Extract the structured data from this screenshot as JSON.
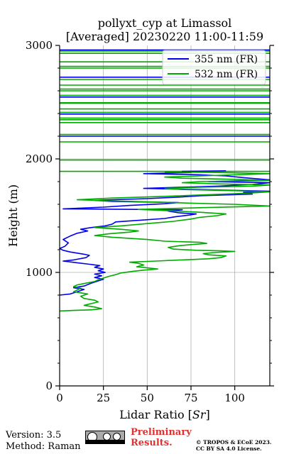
{
  "chart_data": {
    "type": "line",
    "title": "pollyxt_cyp at Limassol",
    "subtitle": "[Averaged] 20230220 11:00-11:59",
    "xlabel": "Lidar Ratio [Sr]",
    "ylabel": "Height (m)",
    "xlim": [
      0,
      120
    ],
    "ylim": [
      0,
      3000
    ],
    "x_ticks": [
      0,
      25,
      50,
      75,
      100
    ],
    "y_ticks": [
      0,
      1000,
      2000,
      3000
    ],
    "grid": true,
    "legend_position": "top-right",
    "series": [
      {
        "name": "355 nm (FR)",
        "color": "#0000ee",
        "points": [
          [
            0,
            800
          ],
          [
            6,
            810
          ],
          [
            10,
            830
          ],
          [
            14,
            850
          ],
          [
            8,
            865
          ],
          [
            14,
            880
          ],
          [
            18,
            905
          ],
          [
            22,
            925
          ],
          [
            25,
            940
          ],
          [
            20,
            955
          ],
          [
            24,
            970
          ],
          [
            20,
            985
          ],
          [
            26,
            1000
          ],
          [
            22,
            1015
          ],
          [
            25,
            1030
          ],
          [
            20,
            1045
          ],
          [
            23,
            1060
          ],
          [
            18,
            1070
          ],
          [
            10,
            1085
          ],
          [
            2,
            1100
          ],
          [
            8,
            1110
          ],
          [
            15,
            1130
          ],
          [
            17,
            1150
          ],
          [
            14,
            1160
          ],
          [
            10,
            1170
          ],
          [
            6,
            1180
          ],
          [
            2,
            1195
          ],
          [
            0,
            1210
          ],
          [
            3,
            1230
          ],
          [
            5,
            1260
          ],
          [
            2,
            1290
          ],
          [
            6,
            1320
          ],
          [
            10,
            1345
          ],
          [
            16,
            1365
          ],
          [
            12,
            1380
          ],
          [
            18,
            1395
          ],
          [
            26,
            1410
          ],
          [
            30,
            1425
          ],
          [
            32,
            1445
          ],
          [
            46,
            1460
          ],
          [
            60,
            1475
          ],
          [
            66,
            1490
          ],
          [
            74,
            1505
          ],
          [
            78,
            1515
          ],
          [
            68,
            1525
          ],
          [
            62,
            1540
          ],
          [
            70,
            1552
          ],
          [
            2,
            1560
          ],
          [
            25,
            1575
          ],
          [
            40,
            1590
          ],
          [
            60,
            1605
          ],
          [
            68,
            1615
          ],
          [
            30,
            1625
          ],
          [
            20,
            1635
          ],
          [
            50,
            1650
          ],
          [
            70,
            1665
          ],
          [
            80,
            1675
          ],
          [
            110,
            1690
          ],
          [
            105,
            1705
          ],
          [
            120,
            1715
          ],
          [
            80,
            1730
          ],
          [
            48,
            1740
          ],
          [
            90,
            1760
          ],
          [
            110,
            1775
          ],
          [
            120,
            1790
          ],
          [
            85,
            1800
          ],
          [
            120,
            1815
          ],
          [
            105,
            1835
          ],
          [
            95,
            1850
          ],
          [
            80,
            1860
          ],
          [
            48,
            1870
          ],
          [
            75,
            1880
          ],
          [
            70,
            1890
          ],
          [
            95,
            1895
          ]
        ]
      },
      {
        "name": "532 nm (FR)",
        "color": "#00aa00",
        "points": [
          [
            0,
            660
          ],
          [
            8,
            665
          ],
          [
            18,
            670
          ],
          [
            24,
            680
          ],
          [
            20,
            695
          ],
          [
            14,
            710
          ],
          [
            18,
            725
          ],
          [
            22,
            740
          ],
          [
            20,
            755
          ],
          [
            14,
            770
          ],
          [
            12,
            790
          ],
          [
            16,
            810
          ],
          [
            8,
            830
          ],
          [
            10,
            845
          ],
          [
            12,
            860
          ],
          [
            8,
            875
          ],
          [
            10,
            890
          ],
          [
            15,
            905
          ],
          [
            20,
            920
          ],
          [
            22,
            935
          ],
          [
            25,
            950
          ],
          [
            28,
            965
          ],
          [
            32,
            980
          ],
          [
            35,
            995
          ],
          [
            42,
            1010
          ],
          [
            48,
            1020
          ],
          [
            56,
            1030
          ],
          [
            50,
            1040
          ],
          [
            44,
            1050
          ],
          [
            48,
            1065
          ],
          [
            45,
            1080
          ],
          [
            40,
            1090
          ],
          [
            55,
            1100
          ],
          [
            70,
            1110
          ],
          [
            85,
            1120
          ],
          [
            92,
            1130
          ],
          [
            95,
            1145
          ],
          [
            85,
            1155
          ],
          [
            82,
            1165
          ],
          [
            88,
            1175
          ],
          [
            100,
            1185
          ],
          [
            92,
            1190
          ],
          [
            78,
            1195
          ],
          [
            65,
            1205
          ],
          [
            62,
            1220
          ],
          [
            68,
            1235
          ],
          [
            75,
            1245
          ],
          [
            84,
            1255
          ],
          [
            80,
            1265
          ],
          [
            60,
            1275
          ],
          [
            50,
            1290
          ],
          [
            30,
            1310
          ],
          [
            20,
            1325
          ],
          [
            28,
            1340
          ],
          [
            40,
            1355
          ],
          [
            45,
            1365
          ],
          [
            35,
            1380
          ],
          [
            20,
            1395
          ],
          [
            35,
            1410
          ],
          [
            50,
            1430
          ],
          [
            65,
            1450
          ],
          [
            75,
            1470
          ],
          [
            80,
            1485
          ],
          [
            90,
            1500
          ],
          [
            95,
            1515
          ],
          [
            80,
            1530
          ],
          [
            60,
            1545
          ],
          [
            45,
            1555
          ],
          [
            80,
            1570
          ],
          [
            120,
            1585
          ],
          [
            100,
            1600
          ],
          [
            75,
            1610
          ],
          [
            55,
            1620
          ],
          [
            30,
            1630
          ],
          [
            10,
            1640
          ],
          [
            30,
            1655
          ],
          [
            60,
            1670
          ],
          [
            85,
            1685
          ],
          [
            110,
            1700
          ],
          [
            120,
            1710
          ],
          [
            100,
            1720
          ],
          [
            70,
            1730
          ],
          [
            60,
            1740
          ],
          [
            80,
            1750
          ],
          [
            110,
            1760
          ],
          [
            120,
            1770
          ],
          [
            90,
            1780
          ],
          [
            70,
            1790
          ],
          [
            80,
            1800
          ],
          [
            120,
            1810
          ],
          [
            100,
            1820
          ],
          [
            70,
            1830
          ],
          [
            60,
            1840
          ],
          [
            80,
            1850
          ],
          [
            100,
            1860
          ],
          [
            120,
            1870
          ],
          [
            90,
            1880
          ],
          [
            60,
            1885
          ]
        ]
      }
    ],
    "bands": [
      {
        "y": 1890,
        "x0": 0,
        "x1": 120,
        "color": "#00aa00"
      },
      {
        "y": 1990,
        "x0": 0,
        "x1": 120,
        "color": "#00aa00"
      },
      {
        "y": 2150,
        "x0": 0,
        "x1": 120,
        "color": "#00aa00"
      },
      {
        "y": 2200,
        "x0": 0,
        "x1": 120,
        "color": "#0000ee"
      },
      {
        "y": 2215,
        "x0": 0,
        "x1": 120,
        "color": "#00aa00"
      },
      {
        "y": 2320,
        "x0": 0,
        "x1": 120,
        "color": "#00aa00"
      },
      {
        "y": 2345,
        "x0": 0,
        "x1": 120,
        "color": "#00aa00"
      },
      {
        "y": 2360,
        "x0": 0,
        "x1": 120,
        "color": "#00aa00"
      },
      {
        "y": 2395,
        "x0": 0,
        "x1": 120,
        "color": "#0000ee"
      },
      {
        "y": 2410,
        "x0": 0,
        "x1": 120,
        "color": "#00aa00"
      },
      {
        "y": 2440,
        "x0": 0,
        "x1": 120,
        "color": "#00aa00"
      },
      {
        "y": 2490,
        "x0": 0,
        "x1": 120,
        "color": "#00aa00"
      },
      {
        "y": 2495,
        "x0": 0,
        "x1": 120,
        "color": "#00aa00"
      },
      {
        "y": 2545,
        "x0": 0,
        "x1": 120,
        "color": "#0000ee"
      },
      {
        "y": 2560,
        "x0": 0,
        "x1": 120,
        "color": "#00aa00"
      },
      {
        "y": 2600,
        "x0": 0,
        "x1": 120,
        "color": "#00aa00"
      },
      {
        "y": 2615,
        "x0": 0,
        "x1": 120,
        "color": "#00aa00"
      },
      {
        "y": 2650,
        "x0": 0,
        "x1": 120,
        "color": "#00aa00"
      },
      {
        "y": 2700,
        "x0": 0,
        "x1": 120,
        "color": "#00aa00"
      },
      {
        "y": 2720,
        "x0": 0,
        "x1": 120,
        "color": "#0000ee"
      },
      {
        "y": 2800,
        "x0": 0,
        "x1": 120,
        "color": "#00aa00"
      },
      {
        "y": 2815,
        "x0": 0,
        "x1": 120,
        "color": "#00aa00"
      },
      {
        "y": 2855,
        "x0": 0,
        "x1": 120,
        "color": "#00aa00"
      },
      {
        "y": 2930,
        "x0": 0,
        "x1": 120,
        "color": "#00aa00"
      },
      {
        "y": 2950,
        "x0": 0,
        "x1": 120,
        "color": "#00aa00"
      },
      {
        "y": 2960,
        "x0": 0,
        "x1": 120,
        "color": "#0000ee"
      }
    ]
  },
  "footer": {
    "version": "Version: 3.5",
    "method": "Method: Raman",
    "preliminary_line1": "Preliminary",
    "preliminary_line2": "Results.",
    "license_line1": "© TROPOS & ECoE 2023.",
    "license_line2": "CC BY SA 4.0 License.",
    "cc_badge_icons": [
      "cc-icon",
      "by-icon",
      "sa-icon"
    ]
  }
}
